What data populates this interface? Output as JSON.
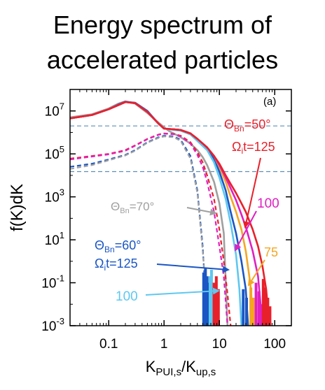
{
  "title_lines": [
    "Energy spectrum of",
    "accelerated particles"
  ],
  "chart_data": {
    "type": "line",
    "panel_label": "(a)",
    "xlabel": {
      "main": "K",
      "sub": "PUI,s",
      "den_main": "K",
      "den_sub": "up,s"
    },
    "ylabel": "f(K)dK",
    "xscale": "log",
    "yscale": "log",
    "xlim": [
      0.02,
      200
    ],
    "ylim": [
      0.001,
      100000000
    ],
    "xticks": [
      {
        "v": 0.1,
        "label": "0.1"
      },
      {
        "v": 1,
        "label": "1"
      },
      {
        "v": 10,
        "label": "10"
      },
      {
        "v": 100,
        "label": "100"
      }
    ],
    "yticks": [
      {
        "v": 10000000,
        "base": "10",
        "exp": "7"
      },
      {
        "v": 100000,
        "base": "10",
        "exp": "5"
      },
      {
        "v": 1000,
        "base": "10",
        "exp": "3"
      },
      {
        "v": 10,
        "base": "10",
        "exp": "1"
      },
      {
        "v": 0.1,
        "base": "10",
        "exp": "-1"
      },
      {
        "v": 0.001,
        "base": "10",
        "exp": "-3"
      }
    ],
    "hlines": [
      2000000,
      15000
    ],
    "hline_color": "#5b8fb9",
    "series": [
      {
        "color": "#a0a0a0",
        "dash": false,
        "x": [
          0.02,
          0.05,
          0.1,
          0.15,
          0.2,
          0.3,
          0.5,
          0.8,
          1.2,
          2,
          3,
          4,
          5,
          6,
          8,
          10,
          12,
          14
        ],
        "y": [
          5000000,
          7000000,
          13000000,
          22000000,
          28000000,
          22000000,
          8000000,
          2800000,
          1200000,
          600000,
          300000,
          150000,
          70000,
          30000,
          5000,
          500,
          20,
          0.001
        ]
      },
      {
        "color": "#1a56c4",
        "dash": false,
        "x": [
          0.02,
          0.05,
          0.1,
          0.15,
          0.2,
          0.3,
          0.5,
          0.8,
          1.0,
          1.5,
          2,
          3,
          4,
          6,
          8,
          10,
          13,
          16,
          20,
          25,
          30,
          33
        ],
        "y": [
          4500000,
          6500000,
          12000000,
          20000000,
          27000000,
          24000000,
          10000000,
          2500000,
          1500000,
          1400000,
          1300000,
          900000,
          500000,
          180000,
          60000,
          15000,
          2000,
          200,
          20,
          1,
          0.05,
          0.001
        ]
      },
      {
        "color": "#5ec8f0",
        "dash": false,
        "x": [
          0.02,
          0.05,
          0.1,
          0.2,
          0.3,
          0.5,
          0.8,
          1.0,
          1.5,
          2,
          3,
          4,
          6,
          8,
          10,
          13,
          16,
          20,
          23,
          25
        ],
        "y": [
          4500000,
          6500000,
          12000000,
          26000000,
          23000000,
          9000000,
          2500000,
          1500000,
          1300000,
          1200000,
          800000,
          400000,
          150000,
          40000,
          8000,
          800,
          60,
          2,
          0.05,
          0.001
        ]
      },
      {
        "color": "#f5a623",
        "dash": false,
        "x": [
          0.02,
          0.05,
          0.1,
          0.2,
          0.3,
          0.5,
          0.8,
          1.0,
          1.5,
          2,
          3,
          4,
          6,
          8,
          10,
          13,
          16,
          20,
          25,
          30,
          36,
          42
        ],
        "y": [
          4500000,
          6500000,
          12000000,
          26000000,
          23000000,
          9000000,
          2500000,
          1500000,
          1400000,
          1300000,
          900000,
          500000,
          200000,
          80000,
          25000,
          5000,
          1000,
          200,
          30,
          3,
          0.1,
          0.001
        ]
      },
      {
        "color": "#e020c0",
        "dash": false,
        "x": [
          0.02,
          0.05,
          0.1,
          0.2,
          0.3,
          0.5,
          0.8,
          1.0,
          1.5,
          2,
          3,
          4,
          6,
          8,
          10,
          13,
          16,
          20,
          25,
          30,
          40,
          50,
          60
        ],
        "y": [
          4500000,
          6500000,
          12000000,
          26000000,
          23000000,
          9000000,
          2500000,
          1500000,
          1400000,
          1300000,
          900000,
          500000,
          200000,
          80000,
          30000,
          8000,
          2500,
          700,
          150,
          40,
          3,
          0.2,
          0.001
        ]
      },
      {
        "color": "#e8202a",
        "dash": false,
        "x": [
          0.02,
          0.05,
          0.1,
          0.2,
          0.3,
          0.5,
          0.8,
          1.0,
          1.5,
          2,
          3,
          4,
          6,
          8,
          10,
          13,
          16,
          20,
          25,
          30,
          40,
          50,
          60,
          70,
          80
        ],
        "y": [
          4500000,
          6500000,
          12000000,
          26000000,
          23000000,
          9000000,
          2500000,
          1500000,
          1400000,
          1300000,
          900000,
          500000,
          200000,
          80000,
          35000,
          10000,
          4000,
          1500,
          500,
          200,
          30,
          5,
          0.6,
          0.05,
          0.001
        ]
      },
      {
        "color": "#1a56c4",
        "dash": true,
        "x": [
          0.02,
          0.05,
          0.1,
          0.2,
          0.3,
          0.5,
          0.8,
          1.0,
          1.5,
          2,
          3,
          4,
          5,
          6
        ],
        "y": [
          25000,
          35000,
          55000,
          90000,
          150000,
          350000,
          600000,
          700000,
          650000,
          450000,
          80000,
          2000,
          5,
          0.001
        ]
      },
      {
        "color": "#e8202a",
        "dash": true,
        "x": [
          0.02,
          0.05,
          0.1,
          0.2,
          0.3,
          0.5,
          0.8,
          1.0,
          1.5,
          2,
          3,
          4,
          5,
          6,
          8,
          10,
          12,
          14,
          16
        ],
        "y": [
          60000,
          80000,
          100000,
          150000,
          250000,
          500000,
          800000,
          900000,
          850000,
          700000,
          350000,
          120000,
          40000,
          10000,
          800,
          30,
          1,
          0.03,
          0.001
        ]
      },
      {
        "color": "#e020c0",
        "dash": true,
        "x": [
          0.02,
          0.05,
          0.1,
          0.2,
          0.3,
          0.5,
          0.8,
          1.0,
          1.5,
          2,
          3,
          4,
          5,
          6,
          8,
          10,
          12,
          14
        ],
        "y": [
          55000,
          75000,
          95000,
          140000,
          240000,
          480000,
          780000,
          880000,
          820000,
          650000,
          300000,
          90000,
          25000,
          5000,
          200,
          5,
          0.2,
          0.001
        ]
      },
      {
        "color": "#a0a0a0",
        "dash": true,
        "x": [
          0.02,
          0.05,
          0.1,
          0.2,
          0.3,
          0.5,
          0.8,
          1.0,
          1.5,
          2,
          3,
          4,
          5,
          6,
          8
        ],
        "y": [
          20000,
          30000,
          50000,
          85000,
          140000,
          330000,
          560000,
          650000,
          600000,
          400000,
          60000,
          1500,
          3,
          0.01,
          0.001
        ]
      }
    ],
    "noise_bars": [
      {
        "color": "#1a56c4",
        "x": [
          5.2,
          5.6,
          6.0,
          6.4
        ],
        "y": [
          0.3,
          0.5,
          0.2,
          0.1
        ]
      },
      {
        "color": "#5ec8f0",
        "x": [
          6.8,
          7.2,
          7.6
        ],
        "y": [
          0.2,
          0.4,
          0.1
        ]
      },
      {
        "color": "#e8202a",
        "x": [
          8.0,
          8.8,
          9.6
        ],
        "y": [
          0.1,
          0.2,
          0.05
        ]
      },
      {
        "color": "#1a56c4",
        "x": [
          27,
          31
        ],
        "y": [
          0.05,
          0.02
        ]
      },
      {
        "color": "#f5a623",
        "x": [
          37,
          41
        ],
        "y": [
          0.06,
          0.02
        ]
      },
      {
        "color": "#e020c0",
        "x": [
          46,
          52,
          58
        ],
        "y": [
          0.1,
          0.04,
          0.01
        ]
      },
      {
        "color": "#e8202a",
        "x": [
          62,
          68,
          75,
          82
        ],
        "y": [
          0.15,
          0.06,
          0.02,
          0.008
        ]
      }
    ],
    "annotations": {
      "red_theta": {
        "text": "Θ",
        "sub": "Bn",
        "rest": "=50°"
      },
      "red_omega": {
        "text": "Ω",
        "sub": "i",
        "rest": "t=125"
      },
      "magenta_100": "100",
      "gray_theta": {
        "text": "Θ",
        "sub": "Bn",
        "rest": "=70°"
      },
      "orange_75": "75",
      "blue_theta": {
        "text": "Θ",
        "sub": "Bn",
        "rest": "=60°"
      },
      "blue_omega": {
        "text": "Ω",
        "sub": "i",
        "rest": "t=125"
      },
      "cyan_100": "100"
    },
    "annotation_colors": {
      "red": "#e8202a",
      "magenta": "#e020c0",
      "gray": "#a0a0a0",
      "orange": "#f5a623",
      "blue": "#1a56c4",
      "cyan": "#5ec8f0"
    }
  }
}
